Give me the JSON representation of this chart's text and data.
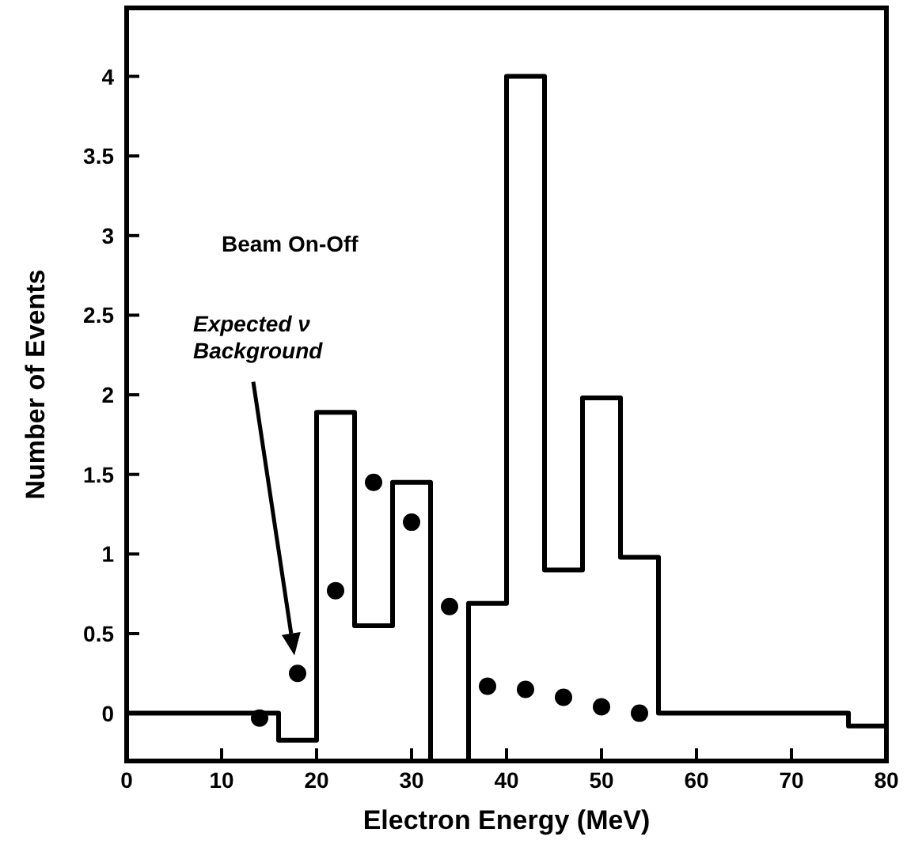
{
  "chart_data": {
    "type": "histogram",
    "xlabel": "Electron Energy (MeV)",
    "ylabel": "Number of Events",
    "xlim": [
      0,
      80
    ],
    "xticks": [
      0,
      10,
      20,
      30,
      40,
      50,
      60,
      70,
      80
    ],
    "ylim": [
      -0.3,
      4.43
    ],
    "yticks": [
      0,
      0.5,
      1,
      1.5,
      2,
      2.5,
      3,
      3.5,
      4
    ],
    "series": [
      {
        "color": "#000000",
        "bins": [
          0,
          4,
          8,
          12,
          16,
          20,
          24,
          28,
          32,
          36,
          40,
          44,
          48,
          52,
          56,
          60,
          64,
          68,
          72,
          76,
          80
        ],
        "values": [
          0,
          0,
          0,
          0,
          -0.17,
          1.89,
          0.55,
          1.45,
          -0.3,
          0.69,
          4,
          0.9,
          1.98,
          0.98,
          0,
          0,
          0,
          0,
          0,
          -0.08
        ]
      },
      {
        "type": "scatter",
        "color": "#000000",
        "x": [
          14,
          18,
          22,
          26,
          30,
          34,
          38,
          42,
          46,
          50,
          54
        ],
        "values": [
          -0.03,
          0.25,
          0.77,
          1.45,
          1.2,
          0.67,
          0.17,
          0.15,
          0.1,
          0.04,
          0
        ]
      }
    ],
    "marker": "circle",
    "grid": false,
    "annotations": [
      "Beam On-Off",
      "Expected ν Background"
    ]
  }
}
